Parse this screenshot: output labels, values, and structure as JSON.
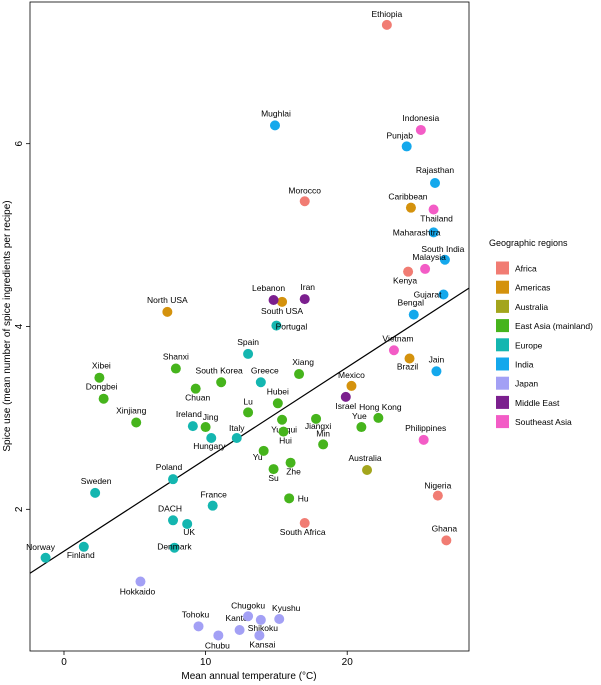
{
  "chart_data": {
    "type": "scatter",
    "xlabel": "Mean annual temperature (°C)",
    "ylabel": "Spice use (mean number of spice ingredients per recipe)",
    "xlim": [
      -2.4,
      28.6
    ],
    "ylim": [
      0.45,
      7.55
    ],
    "xticks": [
      0,
      10,
      20
    ],
    "yticks": [
      2,
      4,
      6
    ],
    "grid": false,
    "regression_line": {
      "x1": -2.4,
      "y1": 1.3,
      "x2": 28.6,
      "y2": 4.42
    },
    "legend": {
      "title": "Geographic regions",
      "placement": "right",
      "entries": [
        {
          "name": "Africa",
          "color": "#F17C73"
        },
        {
          "name": "Americas",
          "color": "#D4920D"
        },
        {
          "name": "Australia",
          "color": "#A3A51C"
        },
        {
          "name": "East Asia (mainland)",
          "color": "#46B41C"
        },
        {
          "name": "Europe",
          "color": "#14B6B0"
        },
        {
          "name": "India",
          "color": "#14A8EC"
        },
        {
          "name": "Japan",
          "color": "#A3A0F5"
        },
        {
          "name": "Middle East",
          "color": "#7B1F8E"
        },
        {
          "name": "Southeast Asia",
          "color": "#F35CC6"
        }
      ]
    },
    "points": [
      {
        "label": "Ethiopia",
        "region": "Africa",
        "x": 22.8,
        "y": 7.3,
        "lx": 0,
        "ly": -8,
        "anchor": "middle"
      },
      {
        "label": "Morocco",
        "region": "Africa",
        "x": 17.0,
        "y": 5.37,
        "lx": 0,
        "ly": -8,
        "anchor": "middle"
      },
      {
        "label": "Kenya",
        "region": "Africa",
        "x": 24.3,
        "y": 4.6,
        "lx": -3,
        "ly": 12,
        "anchor": "middle"
      },
      {
        "label": "Nigeria",
        "region": "Africa",
        "x": 26.4,
        "y": 2.15,
        "lx": 0,
        "ly": -7,
        "anchor": "middle"
      },
      {
        "label": "Ghana",
        "region": "Africa",
        "x": 27.0,
        "y": 1.66,
        "lx": -2,
        "ly": -9,
        "anchor": "middle"
      },
      {
        "label": "South Africa",
        "region": "Africa",
        "x": 17.0,
        "y": 1.85,
        "lx": -2,
        "ly": 12,
        "anchor": "middle"
      },
      {
        "label": "Caribbean",
        "region": "Americas",
        "x": 24.5,
        "y": 5.3,
        "lx": -3,
        "ly": -8,
        "anchor": "middle"
      },
      {
        "label": "North USA",
        "region": "Americas",
        "x": 7.3,
        "y": 4.16,
        "lx": 0,
        "ly": -9,
        "anchor": "middle"
      },
      {
        "label": "South USA",
        "region": "Americas",
        "x": 15.4,
        "y": 4.27,
        "lx": 0,
        "ly": 12,
        "anchor": "middle"
      },
      {
        "label": "Mexico",
        "region": "Americas",
        "x": 20.3,
        "y": 3.35,
        "lx": 0,
        "ly": -8,
        "anchor": "middle"
      },
      {
        "label": "Brazil",
        "region": "Americas",
        "x": 24.4,
        "y": 3.65,
        "lx": -2,
        "ly": 11,
        "anchor": "middle"
      },
      {
        "label": "Australia",
        "region": "Australia",
        "x": 21.4,
        "y": 2.43,
        "lx": -2,
        "ly": -9,
        "anchor": "middle"
      },
      {
        "label": "Xibei",
        "region": "East Asia (mainland)",
        "x": 2.5,
        "y": 3.44,
        "lx": 2,
        "ly": -9,
        "anchor": "middle"
      },
      {
        "label": "Dongbei",
        "region": "East Asia (mainland)",
        "x": 2.8,
        "y": 3.21,
        "lx": -2,
        "ly": -9,
        "anchor": "middle"
      },
      {
        "label": "Xinjiang",
        "region": "East Asia (mainland)",
        "x": 5.1,
        "y": 2.95,
        "lx": -5,
        "ly": -9,
        "anchor": "middle"
      },
      {
        "label": "Shanxi",
        "region": "East Asia (mainland)",
        "x": 7.9,
        "y": 3.54,
        "lx": 0,
        "ly": -9,
        "anchor": "middle"
      },
      {
        "label": "Chuan",
        "region": "East Asia (mainland)",
        "x": 9.3,
        "y": 3.32,
        "lx": 2,
        "ly": 12,
        "anchor": "middle"
      },
      {
        "label": "South Korea",
        "region": "East Asia (mainland)",
        "x": 11.1,
        "y": 3.39,
        "lx": -2,
        "ly": -9,
        "anchor": "middle"
      },
      {
        "label": "Ireland",
        "region": "Europe",
        "x": 9.1,
        "y": 2.91,
        "lx": -4,
        "ly": -9,
        "anchor": "middle"
      },
      {
        "label": "Jing",
        "region": "East Asia (mainland)",
        "x": 10.0,
        "y": 2.9,
        "lx": 5,
        "ly": -7,
        "anchor": "middle"
      },
      {
        "label": "Hungary",
        "region": "Europe",
        "x": 10.4,
        "y": 2.78,
        "lx": -2,
        "ly": 11,
        "anchor": "middle"
      },
      {
        "label": "Italy",
        "region": "Europe",
        "x": 12.2,
        "y": 2.78,
        "lx": 0,
        "ly": -7,
        "anchor": "middle"
      },
      {
        "label": "Lu",
        "region": "East Asia (mainland)",
        "x": 13.0,
        "y": 3.06,
        "lx": 0,
        "ly": -8,
        "anchor": "middle"
      },
      {
        "label": "Greece",
        "region": "Europe",
        "x": 13.9,
        "y": 3.39,
        "lx": 4,
        "ly": -9,
        "anchor": "middle"
      },
      {
        "label": "Spain",
        "region": "Europe",
        "x": 13.0,
        "y": 3.7,
        "lx": 0,
        "ly": -9,
        "anchor": "middle"
      },
      {
        "label": "Lebanon",
        "region": "Middle East",
        "x": 14.8,
        "y": 4.29,
        "lx": -5,
        "ly": -9,
        "anchor": "middle"
      },
      {
        "label": "Iran",
        "region": "Middle East",
        "x": 17.0,
        "y": 4.3,
        "lx": 3,
        "ly": -9,
        "anchor": "middle"
      },
      {
        "label": "Portugal",
        "region": "Europe",
        "x": 15.0,
        "y": 4.01,
        "lx": 15,
        "ly": 4,
        "anchor": "middle"
      },
      {
        "label": "Xiang",
        "region": "East Asia (mainland)",
        "x": 16.6,
        "y": 3.48,
        "lx": 4,
        "ly": -9,
        "anchor": "middle"
      },
      {
        "label": "Hubei",
        "region": "East Asia (mainland)",
        "x": 15.1,
        "y": 3.16,
        "lx": 0,
        "ly": -9,
        "anchor": "middle"
      },
      {
        "label": "Yunqui",
        "region": "East Asia (mainland)",
        "x": 15.4,
        "y": 2.98,
        "lx": 2,
        "ly": 13,
        "anchor": "middle"
      },
      {
        "label": "Hui",
        "region": "East Asia (mainland)",
        "x": 15.5,
        "y": 2.85,
        "lx": 2,
        "ly": 12,
        "anchor": "middle"
      },
      {
        "label": "Jiangxi",
        "region": "East Asia (mainland)",
        "x": 17.8,
        "y": 2.99,
        "lx": 2,
        "ly": 10,
        "anchor": "middle"
      },
      {
        "label": "Yu",
        "region": "East Asia (mainland)",
        "x": 14.1,
        "y": 2.64,
        "lx": -6,
        "ly": 9,
        "anchor": "middle"
      },
      {
        "label": "Zhe",
        "region": "East Asia (mainland)",
        "x": 16.0,
        "y": 2.51,
        "lx": 3,
        "ly": 12,
        "anchor": "middle"
      },
      {
        "label": "Su",
        "region": "East Asia (mainland)",
        "x": 14.8,
        "y": 2.44,
        "lx": 0,
        "ly": 12,
        "anchor": "middle"
      },
      {
        "label": "Min",
        "region": "East Asia (mainland)",
        "x": 18.3,
        "y": 2.71,
        "lx": 0,
        "ly": -8,
        "anchor": "middle"
      },
      {
        "label": "Hu",
        "region": "East Asia (mainland)",
        "x": 15.9,
        "y": 2.12,
        "lx": 14,
        "ly": 3,
        "anchor": "middle"
      },
      {
        "label": "Yue",
        "region": "East Asia (mainland)",
        "x": 21.0,
        "y": 2.9,
        "lx": -2,
        "ly": -8,
        "anchor": "middle"
      },
      {
        "label": "Hong Kong",
        "region": "East Asia (mainland)",
        "x": 22.2,
        "y": 3.0,
        "lx": 2,
        "ly": -8,
        "anchor": "middle"
      },
      {
        "label": "Israel",
        "region": "Middle East",
        "x": 19.9,
        "y": 3.23,
        "lx": 0,
        "ly": 12,
        "anchor": "middle"
      },
      {
        "label": "Sweden",
        "region": "Europe",
        "x": 2.2,
        "y": 2.18,
        "lx": 1,
        "ly": -9,
        "anchor": "middle"
      },
      {
        "label": "Poland",
        "region": "Europe",
        "x": 7.7,
        "y": 2.33,
        "lx": -4,
        "ly": -9,
        "anchor": "middle"
      },
      {
        "label": "France",
        "region": "Europe",
        "x": 10.5,
        "y": 2.04,
        "lx": 1,
        "ly": -8,
        "anchor": "middle"
      },
      {
        "label": "DACH",
        "region": "Europe",
        "x": 7.7,
        "y": 1.88,
        "lx": -3,
        "ly": -9,
        "anchor": "middle"
      },
      {
        "label": "UK",
        "region": "Europe",
        "x": 8.7,
        "y": 1.84,
        "lx": 2,
        "ly": 11,
        "anchor": "middle"
      },
      {
        "label": "Denmark",
        "region": "Europe",
        "x": 7.8,
        "y": 1.58,
        "lx": 0,
        "ly": 2,
        "anchor": "middle"
      },
      {
        "label": "Norway",
        "region": "Europe",
        "x": -1.3,
        "y": 1.47,
        "lx": -5,
        "ly": -8,
        "anchor": "middle"
      },
      {
        "label": "Finland",
        "region": "Europe",
        "x": 1.4,
        "y": 1.59,
        "lx": -3,
        "ly": 11,
        "anchor": "middle"
      },
      {
        "label": "Mughlai",
        "region": "India",
        "x": 14.9,
        "y": 6.2,
        "lx": 1,
        "ly": -9,
        "anchor": "middle"
      },
      {
        "label": "Punjab",
        "region": "India",
        "x": 24.2,
        "y": 5.97,
        "lx": -7,
        "ly": -8,
        "anchor": "middle"
      },
      {
        "label": "Rajasthan",
        "region": "India",
        "x": 26.2,
        "y": 5.57,
        "lx": 0,
        "ly": -10,
        "anchor": "middle"
      },
      {
        "label": "Maharashtra",
        "region": "India",
        "x": 26.1,
        "y": 5.03,
        "lx": -17,
        "ly": 3,
        "anchor": "middle"
      },
      {
        "label": "South India",
        "region": "India",
        "x": 26.9,
        "y": 4.73,
        "lx": -2,
        "ly": -8,
        "anchor": "middle"
      },
      {
        "label": "Gujarat",
        "region": "India",
        "x": 26.8,
        "y": 4.35,
        "lx": -16,
        "ly": 3,
        "anchor": "middle"
      },
      {
        "label": "Bengal",
        "region": "India",
        "x": 24.7,
        "y": 4.13,
        "lx": -3,
        "ly": -9,
        "anchor": "middle"
      },
      {
        "label": "Jain",
        "region": "India",
        "x": 26.3,
        "y": 3.51,
        "lx": 0,
        "ly": -9,
        "anchor": "middle"
      },
      {
        "label": "Hokkaido",
        "region": "Japan",
        "x": 5.4,
        "y": 1.21,
        "lx": -3,
        "ly": 13,
        "anchor": "middle"
      },
      {
        "label": "Tohoku",
        "region": "Japan",
        "x": 9.5,
        "y": 0.72,
        "lx": -3,
        "ly": -9,
        "anchor": "middle"
      },
      {
        "label": "Kanto",
        "region": "Japan",
        "x": 12.4,
        "y": 0.68,
        "lx": -3,
        "ly": -9,
        "anchor": "middle"
      },
      {
        "label": "Chubu",
        "region": "Japan",
        "x": 10.9,
        "y": 0.62,
        "lx": -1,
        "ly": 13,
        "anchor": "middle"
      },
      {
        "label": "Chugoku",
        "region": "Japan",
        "x": 13.0,
        "y": 0.83,
        "lx": 0,
        "ly": -8,
        "anchor": "middle"
      },
      {
        "label": "Shikoku",
        "region": "Japan",
        "x": 13.9,
        "y": 0.79,
        "lx": 2,
        "ly": 11,
        "anchor": "middle"
      },
      {
        "label": "Kyushu",
        "region": "Japan",
        "x": 15.2,
        "y": 0.8,
        "lx": 7,
        "ly": -8,
        "anchor": "middle"
      },
      {
        "label": "Kansai",
        "region": "Japan",
        "x": 13.8,
        "y": 0.62,
        "lx": 3,
        "ly": 12,
        "anchor": "middle"
      },
      {
        "label": "Indonesia",
        "region": "Southeast Asia",
        "x": 25.2,
        "y": 6.15,
        "lx": 0,
        "ly": -9,
        "anchor": "middle"
      },
      {
        "label": "Thailand",
        "region": "Southeast Asia",
        "x": 26.1,
        "y": 5.28,
        "lx": 3,
        "ly": 12,
        "anchor": "middle"
      },
      {
        "label": "Malaysia",
        "region": "Southeast Asia",
        "x": 25.5,
        "y": 4.63,
        "lx": 4,
        "ly": -9,
        "anchor": "middle"
      },
      {
        "label": "Vietnam",
        "region": "Southeast Asia",
        "x": 23.3,
        "y": 3.74,
        "lx": 4,
        "ly": -9,
        "anchor": "middle"
      },
      {
        "label": "Philippines",
        "region": "Southeast Asia",
        "x": 25.4,
        "y": 2.76,
        "lx": 2,
        "ly": -9,
        "anchor": "middle"
      }
    ]
  }
}
